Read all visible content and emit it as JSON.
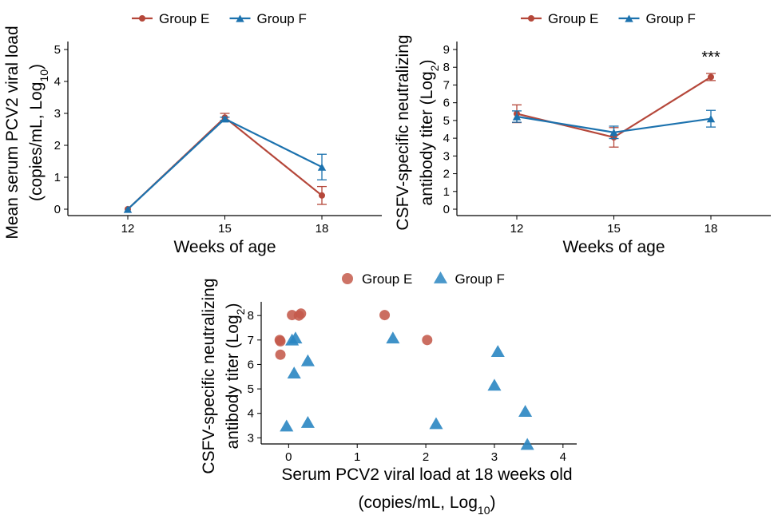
{
  "colors": {
    "group_e": "#B5473A",
    "group_f": "#1C72AE",
    "group_e_scatter": "#C45A4B",
    "group_f_scatter": "#2A86C2"
  },
  "chart_data": [
    {
      "type": "line",
      "xlabel": "Weeks of age",
      "ylabel_line1": "Mean serum PCV2 viral load",
      "ylabel_line2": "(copies/mL, Log",
      "ylabel_sub": "10",
      "ylabel_close": ")",
      "x": [
        "12",
        "15",
        "18"
      ],
      "ylim": [
        0,
        5
      ],
      "yticks": [
        "0",
        "1",
        "2",
        "3",
        "4",
        "5"
      ],
      "legend_position": "top",
      "grid": false,
      "series": [
        {
          "name": "Group E",
          "values": [
            0,
            2.87,
            0.43
          ],
          "err": [
            0,
            0.13,
            0.28
          ]
        },
        {
          "name": "Group F",
          "values": [
            0,
            2.83,
            1.32
          ],
          "err": [
            0,
            0.05,
            0.4
          ]
        }
      ]
    },
    {
      "type": "line",
      "xlabel": "Weeks of age",
      "ylabel_line1": "CSFV-specific neutralizing",
      "ylabel_line2": "antibody titer (Log",
      "ylabel_sub": "2",
      "ylabel_close": ")",
      "x": [
        "12",
        "15",
        "18"
      ],
      "ylim": [
        0,
        9
      ],
      "yticks": [
        "0",
        "1",
        "2",
        "3",
        "4",
        "5",
        "6",
        "7",
        "8",
        "9"
      ],
      "legend_position": "top",
      "grid": false,
      "annotation": "***",
      "series": [
        {
          "name": "Group E",
          "values": [
            5.38,
            4.05,
            7.45
          ],
          "err": [
            0.5,
            0.55,
            0.2
          ]
        },
        {
          "name": "Group F",
          "values": [
            5.22,
            4.33,
            5.1
          ],
          "err": [
            0.32,
            0.35,
            0.47
          ]
        }
      ]
    },
    {
      "type": "scatter",
      "xlabel_line1": "Serum PCV2 viral load at 18 weeks old",
      "xlabel_line2": "(copies/mL, Log",
      "xlabel_sub": "10",
      "xlabel_close": ")",
      "ylabel_line1": "CSFV-specific neutralizing",
      "ylabel_line2": "antibody titer (Log",
      "ylabel_sub": "2",
      "ylabel_close": ")",
      "xlim": [
        -0.4,
        4.2
      ],
      "ylim": [
        2.75,
        8.3
      ],
      "xticks": [
        "0",
        "1",
        "2",
        "3",
        "4"
      ],
      "yticks": [
        "3",
        "4",
        "5",
        "6",
        "7",
        "8"
      ],
      "legend_position": "top",
      "grid": false,
      "series": [
        {
          "name": "Group E",
          "points": [
            [
              -0.13,
              7.0
            ],
            [
              -0.12,
              6.95
            ],
            [
              -0.12,
              6.4
            ],
            [
              0.05,
              8.02
            ],
            [
              0.15,
              8.0
            ],
            [
              0.18,
              8.08
            ],
            [
              1.4,
              8.02
            ],
            [
              2.02,
              7.0
            ]
          ]
        },
        {
          "name": "Group F",
          "points": [
            [
              -0.03,
              3.45
            ],
            [
              0.05,
              6.97
            ],
            [
              0.1,
              7.05
            ],
            [
              0.08,
              5.62
            ],
            [
              0.28,
              6.12
            ],
            [
              0.28,
              3.6
            ],
            [
              1.52,
              7.05
            ],
            [
              2.15,
              3.55
            ],
            [
              3.0,
              5.12
            ],
            [
              3.05,
              6.5
            ],
            [
              3.45,
              4.05
            ],
            [
              3.48,
              2.7
            ]
          ]
        }
      ]
    }
  ]
}
